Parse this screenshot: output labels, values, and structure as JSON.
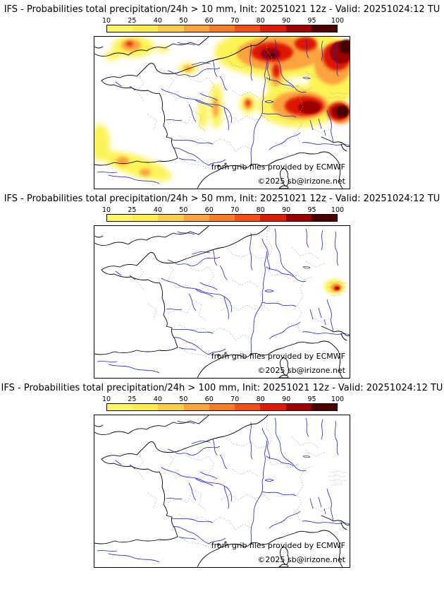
{
  "colorbar": {
    "tick_labels": [
      "10",
      "25",
      "40",
      "50",
      "60",
      "70",
      "80",
      "90",
      "95",
      "100"
    ],
    "segment_colors": [
      "#fdf768",
      "#fced4e",
      "#fccd4a",
      "#fba33c",
      "#f97c27",
      "#f55014",
      "#dd1c00",
      "#9e0000",
      "#4c0000"
    ]
  },
  "map_style": {
    "river_color": "#2323cf",
    "coast_color": "#000000",
    "admin_border_color": "#a9a9a9",
    "background": "#ffffff"
  },
  "panels": [
    {
      "threshold": "10 mm",
      "title": "IFS - Probabilities total precipitation/24h > 10 mm, Init: 20251021 12z - Valid: 20251024:12 TU",
      "credit_provider": "from grib files provided by ECMWF",
      "credit_copyright": "©2025 sb@irizone.net"
    },
    {
      "threshold": "50 mm",
      "title": "IFS - Probabilities total precipitation/24h > 50 mm, Init: 20251021 12z - Valid: 20251024:12 TU",
      "credit_provider": "from grib files provided by ECMWF",
      "credit_copyright": "©2025 sb@irizone.net"
    },
    {
      "threshold": "100 mm",
      "title": "IFS - Probabilities total precipitation/24h > 100 mm, Init: 20251021 12z - Valid: 20251024:12 TU",
      "credit_provider": "from grib files provided by ECMWF",
      "credit_copyright": "©2025 sb@irizone.net"
    }
  ]
}
